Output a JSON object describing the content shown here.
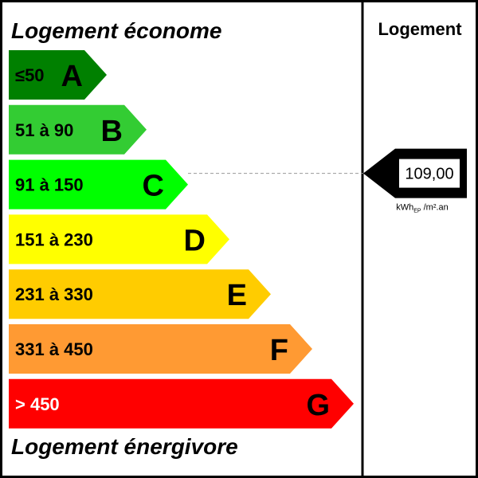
{
  "header": {
    "top_label": "Logement économe",
    "bottom_label": "Logement énergivore",
    "column_title": "Logement"
  },
  "classes": [
    {
      "letter": "A",
      "range": "≤50",
      "color": "#008000",
      "range_color": "#000000",
      "letter_color": "#000000"
    },
    {
      "letter": "B",
      "range": "51 à 90",
      "color": "#33cc33",
      "range_color": "#000000",
      "letter_color": "#000000"
    },
    {
      "letter": "C",
      "range": "91 à 150",
      "color": "#00ff00",
      "range_color": "#000000",
      "letter_color": "#000000"
    },
    {
      "letter": "D",
      "range": "151 à 230",
      "color": "#ffff00",
      "range_color": "#000000",
      "letter_color": "#000000"
    },
    {
      "letter": "E",
      "range": "231 à 330",
      "color": "#ffcc00",
      "range_color": "#000000",
      "letter_color": "#000000"
    },
    {
      "letter": "F",
      "range": "331 à 450",
      "color": "#ff9a33",
      "range_color": "#000000",
      "letter_color": "#000000"
    },
    {
      "letter": "G",
      "range": "> 450",
      "color": "#ff0000",
      "range_color": "#ffffff",
      "letter_color": "#ffffff"
    }
  ],
  "indicator": {
    "value": "109,00",
    "class": "C",
    "unit_prefix": "kWh",
    "unit_sub": "EP",
    "unit_suffix": " /m².an"
  }
}
